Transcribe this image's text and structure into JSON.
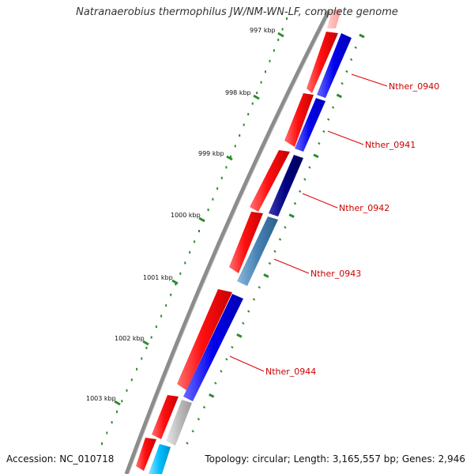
{
  "title": "Natranaerobius thermophilus JW/NM-WN-LF, complete genome",
  "accession": "Accession: NC_010718",
  "topology": "Topology: circular; Length: 3,165,557 bp; Genes: 2,946",
  "kbp_ticks": [
    "997 kbp",
    "998 kbp",
    "999 kbp",
    "1000 kbp",
    "1001 kbp",
    "1002 kbp",
    "1003 kbp"
  ],
  "genes": [
    {
      "label": "Nther_0940",
      "color": "#0000ee"
    },
    {
      "label": "Nther_0941",
      "color": "#0000ee"
    },
    {
      "label": "Nther_0942",
      "color": "#000080"
    },
    {
      "label": "Nther_0943",
      "color": "#4682b4"
    },
    {
      "label": "Nther_0944",
      "color": "#0000ee"
    }
  ],
  "colors": {
    "backbone": "#8c8c8c",
    "forward_strand": "#ee0000",
    "reverse_blue": "#0000ee",
    "reverse_navy": "#000080",
    "reverse_steel": "#4682b4",
    "reverse_gray": "#bdbdbd",
    "reverse_cyan": "#00bfff",
    "tick_green": "#2e8b2e",
    "label_red": "#cc0000"
  }
}
